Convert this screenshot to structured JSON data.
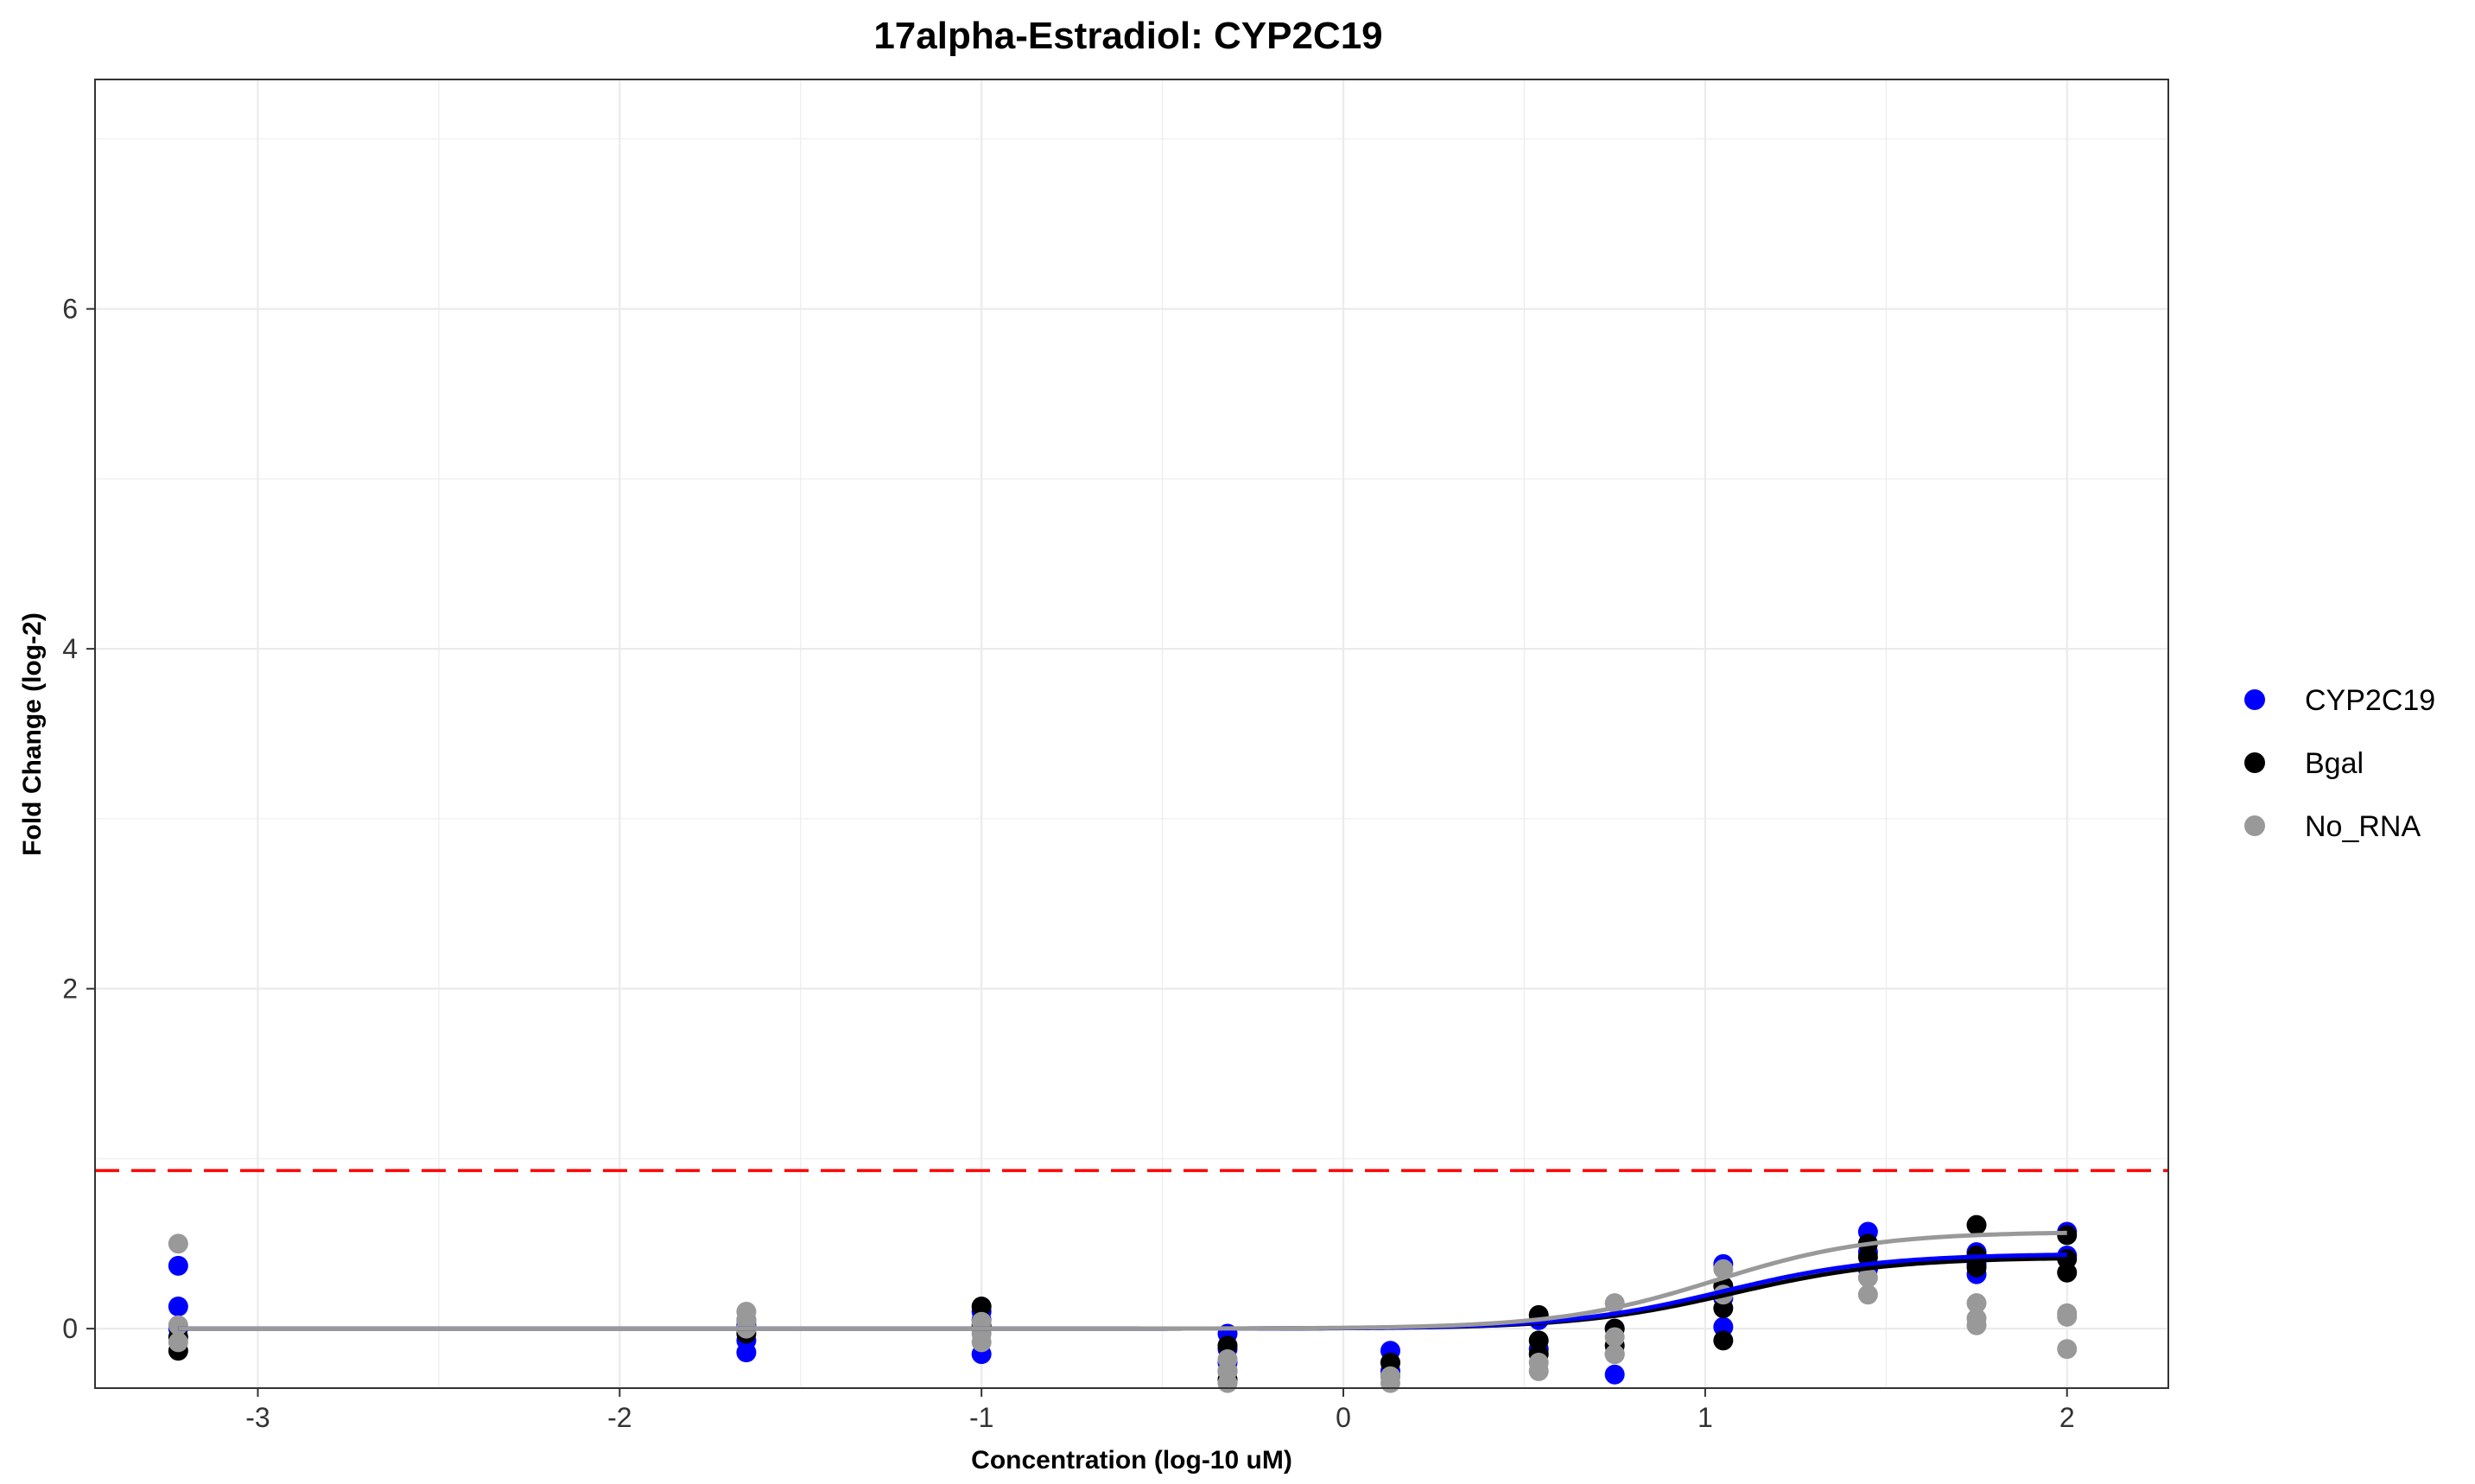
{
  "chart_data": {
    "type": "scatter",
    "title": "17alpha-Estradiol: CYP2C19",
    "xlabel": "Concentration (log-10 uM)",
    "ylabel": "Fold Change (log-2)",
    "xlim": [
      -3.45,
      2.28
    ],
    "ylim": [
      -0.35,
      7.35
    ],
    "x_ticks": [
      -3,
      -2,
      -1,
      0,
      1,
      2
    ],
    "y_ticks": [
      0,
      2,
      4,
      6
    ],
    "grid": true,
    "legend_position": "right",
    "threshold": {
      "value": 0.93,
      "color": "#ff0000",
      "style": "dashed"
    },
    "series": [
      {
        "name": "CYP2C19",
        "color": "#0000ff",
        "points": [
          [
            -3.22,
            0.37
          ],
          [
            -3.22,
            0.13
          ],
          [
            -3.22,
            0.0
          ],
          [
            -1.65,
            -0.14
          ],
          [
            -1.65,
            -0.07
          ],
          [
            -1.65,
            0.02
          ],
          [
            -1.0,
            -0.15
          ],
          [
            -1.0,
            0.05
          ],
          [
            -1.0,
            0.1
          ],
          [
            -0.32,
            -0.03
          ],
          [
            -0.32,
            -0.12
          ],
          [
            -0.32,
            -0.2
          ],
          [
            0.13,
            -0.13
          ],
          [
            0.13,
            -0.2
          ],
          [
            0.13,
            -0.25
          ],
          [
            0.54,
            0.05
          ],
          [
            0.54,
            -0.12
          ],
          [
            0.75,
            -0.27
          ],
          [
            0.75,
            -0.15
          ],
          [
            0.75,
            0.0
          ],
          [
            1.05,
            0.38
          ],
          [
            1.05,
            0.18
          ],
          [
            1.05,
            0.01
          ],
          [
            1.45,
            0.57
          ],
          [
            1.45,
            0.45
          ],
          [
            1.45,
            0.35
          ],
          [
            1.75,
            0.45
          ],
          [
            1.75,
            0.38
          ],
          [
            1.75,
            0.32
          ],
          [
            2.0,
            0.57
          ],
          [
            2.0,
            0.43
          ]
        ],
        "curve": {
          "bottom": 0.0,
          "top": 0.44,
          "ec50_log": 1.05,
          "hill_slope": 8
        }
      },
      {
        "name": "Bgal",
        "color": "#000000",
        "points": [
          [
            -3.22,
            -0.13
          ],
          [
            -3.22,
            -0.05
          ],
          [
            -1.65,
            -0.03
          ],
          [
            -1.65,
            0.05
          ],
          [
            -1.0,
            0.13
          ],
          [
            -1.0,
            0.02
          ],
          [
            -0.32,
            -0.1
          ],
          [
            -0.32,
            -0.25
          ],
          [
            -0.32,
            -0.3
          ],
          [
            0.13,
            -0.2
          ],
          [
            0.13,
            -0.28
          ],
          [
            0.54,
            0.08
          ],
          [
            0.54,
            -0.07
          ],
          [
            0.54,
            -0.15
          ],
          [
            0.75,
            0.0
          ],
          [
            0.75,
            -0.1
          ],
          [
            1.05,
            0.25
          ],
          [
            1.05,
            0.12
          ],
          [
            1.05,
            -0.07
          ],
          [
            1.45,
            0.5
          ],
          [
            1.45,
            0.42
          ],
          [
            1.75,
            0.61
          ],
          [
            1.75,
            0.43
          ],
          [
            1.75,
            0.36
          ],
          [
            2.0,
            0.55
          ],
          [
            2.0,
            0.41
          ],
          [
            2.0,
            0.33
          ]
        ],
        "curve": {
          "bottom": 0.0,
          "top": 0.42,
          "ec50_log": 1.08,
          "hill_slope": 8
        }
      },
      {
        "name": "No_RNA",
        "color": "#999999",
        "points": [
          [
            -3.22,
            0.5
          ],
          [
            -3.22,
            0.02
          ],
          [
            -3.22,
            -0.08
          ],
          [
            -1.65,
            0.1
          ],
          [
            -1.65,
            0.05
          ],
          [
            -1.65,
            0.0
          ],
          [
            -1.0,
            0.04
          ],
          [
            -1.0,
            -0.03
          ],
          [
            -1.0,
            -0.08
          ],
          [
            -0.32,
            -0.18
          ],
          [
            -0.32,
            -0.25
          ],
          [
            -0.32,
            -0.32
          ],
          [
            0.13,
            -0.28
          ],
          [
            0.13,
            -0.32
          ],
          [
            0.54,
            -0.2
          ],
          [
            0.54,
            -0.25
          ],
          [
            0.75,
            0.15
          ],
          [
            0.75,
            -0.05
          ],
          [
            0.75,
            -0.15
          ],
          [
            1.05,
            0.35
          ],
          [
            1.05,
            0.2
          ],
          [
            1.45,
            0.3
          ],
          [
            1.45,
            0.2
          ],
          [
            1.75,
            0.15
          ],
          [
            1.75,
            0.06
          ],
          [
            1.75,
            0.02
          ],
          [
            2.0,
            0.09
          ],
          [
            2.0,
            0.07
          ],
          [
            2.0,
            -0.12
          ]
        ],
        "curve": {
          "bottom": 0.0,
          "top": 0.57,
          "ec50_log": 1.03,
          "hill_slope": 8
        }
      }
    ]
  }
}
